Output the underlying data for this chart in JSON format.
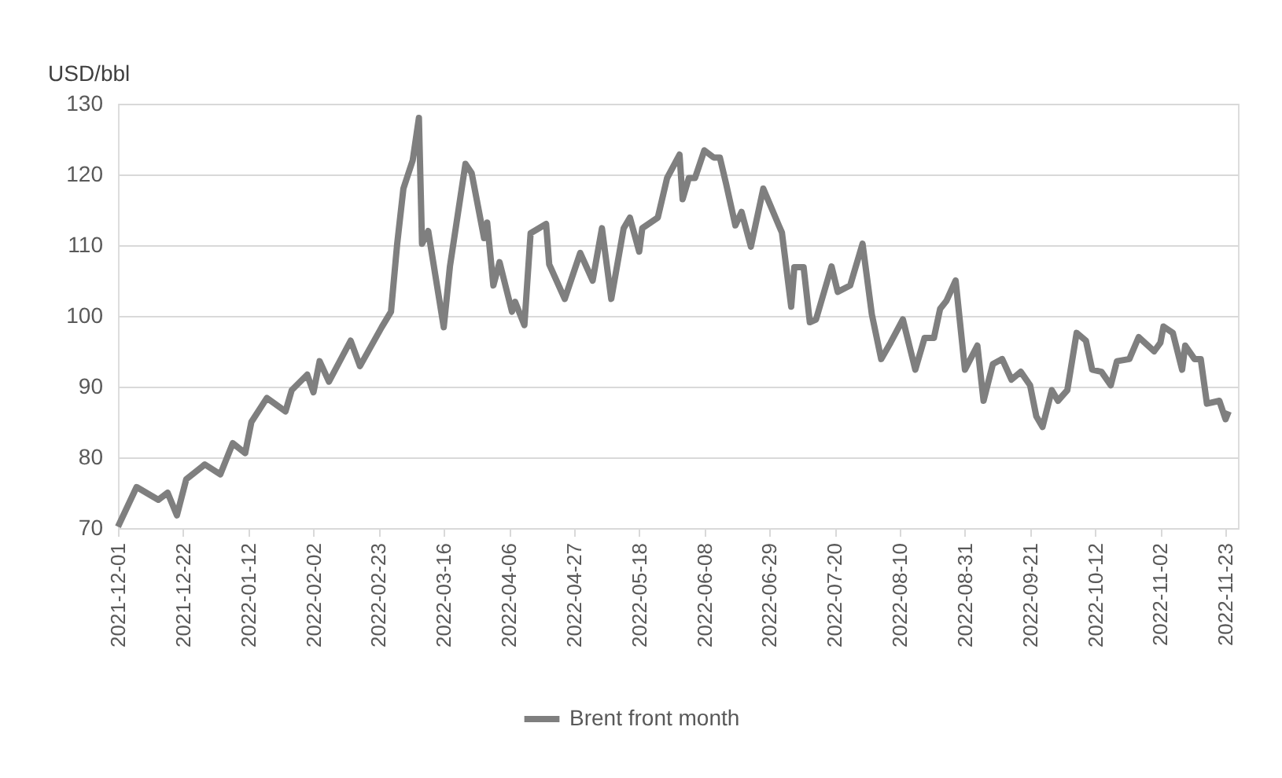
{
  "chart_data": {
    "type": "line",
    "ylabel": "USD/bbl",
    "legend": "bottom",
    "grid": "y",
    "marker": "none",
    "line_style": "solid",
    "xlim": [
      "2021-12-01",
      "2022-11-27"
    ],
    "xticks": [
      "2021-12-01",
      "2021-12-22",
      "2022-01-12",
      "2022-02-02",
      "2022-02-23",
      "2022-03-16",
      "2022-04-06",
      "2022-04-27",
      "2022-05-18",
      "2022-06-08",
      "2022-06-29",
      "2022-07-20",
      "2022-08-10",
      "2022-08-31",
      "2022-09-21",
      "2022-10-12",
      "2022-11-02",
      "2022-11-23"
    ],
    "ylim": [
      70,
      130
    ],
    "yticks": [
      70,
      80,
      90,
      100,
      110,
      120,
      130
    ],
    "x": [
      "2021-12-01",
      "2021-12-07",
      "2021-12-14",
      "2021-12-17",
      "2021-12-20",
      "2021-12-23",
      "2021-12-29",
      "2022-01-03",
      "2022-01-07",
      "2022-01-11",
      "2022-01-13",
      "2022-01-18",
      "2022-01-24",
      "2022-01-26",
      "2022-01-31",
      "2022-02-02",
      "2022-02-04",
      "2022-02-07",
      "2022-02-14",
      "2022-02-17",
      "2022-02-24",
      "2022-02-27",
      "2022-03-01",
      "2022-03-03",
      "2022-03-06",
      "2022-03-08",
      "2022-03-09",
      "2022-03-11",
      "2022-03-16",
      "2022-03-18",
      "2022-03-23",
      "2022-03-25",
      "2022-03-29",
      "2022-03-30",
      "2022-04-01",
      "2022-04-03",
      "2022-04-07",
      "2022-04-08",
      "2022-04-11",
      "2022-04-13",
      "2022-04-18",
      "2022-04-19",
      "2022-04-24",
      "2022-04-29",
      "2022-05-03",
      "2022-05-06",
      "2022-05-09",
      "2022-05-13",
      "2022-05-15",
      "2022-05-18",
      "2022-05-19",
      "2022-05-24",
      "2022-05-27",
      "2022-05-31",
      "2022-06-01",
      "2022-06-03",
      "2022-06-05",
      "2022-06-08",
      "2022-06-11",
      "2022-06-13",
      "2022-06-15",
      "2022-06-18",
      "2022-06-20",
      "2022-06-23",
      "2022-06-27",
      "2022-07-02",
      "2022-07-03",
      "2022-07-06",
      "2022-07-07",
      "2022-07-10",
      "2022-07-12",
      "2022-07-14",
      "2022-07-19",
      "2022-07-21",
      "2022-07-25",
      "2022-07-29",
      "2022-08-01",
      "2022-08-04",
      "2022-08-07",
      "2022-08-11",
      "2022-08-15",
      "2022-08-18",
      "2022-08-21",
      "2022-08-23",
      "2022-08-25",
      "2022-08-28",
      "2022-08-31",
      "2022-09-04",
      "2022-09-06",
      "2022-09-09",
      "2022-09-12",
      "2022-09-15",
      "2022-09-18",
      "2022-09-21",
      "2022-09-23",
      "2022-09-25",
      "2022-09-28",
      "2022-09-30",
      "2022-10-03",
      "2022-10-06",
      "2022-10-09",
      "2022-10-11",
      "2022-10-14",
      "2022-10-17",
      "2022-10-19",
      "2022-10-23",
      "2022-10-26",
      "2022-10-31",
      "2022-11-02",
      "2022-11-03",
      "2022-11-06",
      "2022-11-09",
      "2022-11-10",
      "2022-11-13",
      "2022-11-15",
      "2022-11-17",
      "2022-11-21",
      "2022-11-23",
      "2022-11-24"
    ],
    "series": [
      {
        "name": "Brent front month",
        "color": "#7f7f7f",
        "values": [
          70.2,
          75.8,
          74,
          75,
          71.8,
          76.9,
          79,
          77.6,
          82,
          80.6,
          85,
          88.4,
          86.5,
          89.5,
          91.7,
          89.2,
          93.6,
          90.7,
          96.5,
          92.9,
          98.4,
          100.6,
          110.2,
          118,
          122,
          128,
          110.2,
          112,
          98.4,
          107,
          121.5,
          120.2,
          111,
          113.2,
          104.3,
          107.6,
          100.6,
          102,
          98.7,
          111.7,
          113,
          107.3,
          102.4,
          108.9,
          105,
          112.4,
          102.4,
          112.4,
          113.9,
          109.1,
          112.4,
          113.9,
          119.5,
          122.8,
          116.5,
          119.5,
          119.5,
          123.4,
          122.4,
          122.4,
          118.7,
          112.8,
          114.7,
          109.8,
          118,
          112.8,
          111.8,
          101.3,
          106.9,
          106.9,
          99.1,
          99.5,
          107,
          103.4,
          104.3,
          110.2,
          100.2,
          93.9,
          96.2,
          99.5,
          92.4,
          96.9,
          96.9,
          101,
          102.1,
          105,
          92.4,
          95.8,
          88,
          93.2,
          93.9,
          91,
          92.1,
          90.2,
          85.8,
          84.3,
          89.5,
          88,
          89.5,
          97.6,
          96.5,
          92.4,
          92.1,
          90.2,
          93.6,
          93.9,
          97,
          95,
          96.2,
          98.5,
          97.6,
          92.4,
          95.8,
          93.9,
          93.9,
          87.6,
          88,
          85.4,
          86.5
        ]
      }
    ]
  }
}
